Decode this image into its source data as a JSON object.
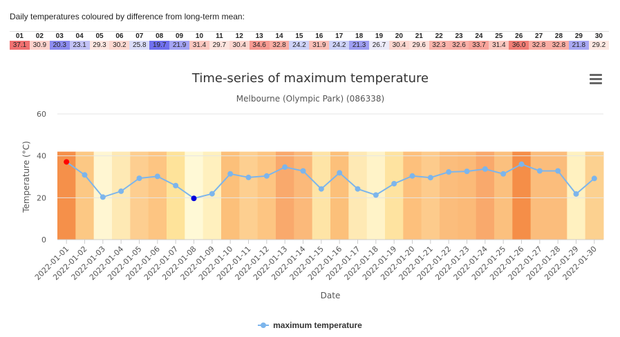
{
  "intro_text": "Daily temperatures coloured by difference from long-term mean:",
  "menu_icon": "hamburger-menu-icon",
  "colors": {
    "line": "#7cb5ec",
    "max_marker": "#ff0000",
    "min_marker": "#0000dd",
    "grid": "#e6e6e6"
  },
  "daily_table": {
    "days": [
      "01",
      "02",
      "03",
      "04",
      "05",
      "06",
      "07",
      "08",
      "09",
      "10",
      "11",
      "12",
      "13",
      "14",
      "15",
      "16",
      "17",
      "18",
      "19",
      "20",
      "21",
      "22",
      "23",
      "24",
      "25",
      "26",
      "27",
      "28",
      "29",
      "30"
    ],
    "values": [
      "37.1",
      "30.9",
      "20.3",
      "23.1",
      "29.3",
      "30.2",
      "25.8",
      "19.7",
      "21.9",
      "31.4",
      "29.7",
      "30.4",
      "34.6",
      "32.8",
      "24.2",
      "31.9",
      "24.2",
      "21.3",
      "26.7",
      "30.4",
      "29.6",
      "32.3",
      "32.6",
      "33.7",
      "31.4",
      "36.0",
      "32.8",
      "32.8",
      "21.8",
      "29.2"
    ],
    "cell_colors": [
      "#f07171",
      "#fcd2cc",
      "#8c8cf0",
      "#c2c2f6",
      "#fde6e0",
      "#fcd8d0",
      "#d9dcf8",
      "#7070ee",
      "#a4a4f4",
      "#fbc8c0",
      "#fde4de",
      "#fcd6cf",
      "#f79a92",
      "#faaea5",
      "#cdd2f8",
      "#fbbfb7",
      "#cdd2f8",
      "#9e9ef2",
      "#ebeaf8",
      "#fcd6cf",
      "#fde0da",
      "#fab4ac",
      "#fab0a8",
      "#f8a49b",
      "#fbc8c0",
      "#f17e76",
      "#faaea5",
      "#faaea5",
      "#a8a8f4",
      "#fde8e2"
    ]
  },
  "chart_data": {
    "type": "line",
    "title": "Time-series of maximum temperature",
    "subtitle": "Melbourne (Olympic Park) (086338)",
    "xlabel": "Date",
    "ylabel": "Temperature (°C)",
    "ylim": [
      0,
      60
    ],
    "yticks": [
      0,
      20,
      40,
      60
    ],
    "grid": true,
    "legend_position": "bottom-center",
    "x": [
      "2022-01-01",
      "2022-01-02",
      "2022-01-03",
      "2022-01-04",
      "2022-01-05",
      "2022-01-06",
      "2022-01-07",
      "2022-01-08",
      "2022-01-09",
      "2022-01-10",
      "2022-01-11",
      "2022-01-12",
      "2022-01-13",
      "2022-01-14",
      "2022-01-15",
      "2022-01-16",
      "2022-01-17",
      "2022-01-18",
      "2022-01-19",
      "2022-01-20",
      "2022-01-21",
      "2022-01-22",
      "2022-01-23",
      "2022-01-24",
      "2022-01-25",
      "2022-01-26",
      "2022-01-27",
      "2022-01-28",
      "2022-01-29",
      "2022-01-30"
    ],
    "series": [
      {
        "name": "maximum temperature",
        "values": [
          37.1,
          30.9,
          20.3,
          23.1,
          29.3,
          30.2,
          25.8,
          19.7,
          21.9,
          31.4,
          29.7,
          30.4,
          34.6,
          32.8,
          24.2,
          31.9,
          24.2,
          21.3,
          26.7,
          30.4,
          29.6,
          32.3,
          32.6,
          33.7,
          31.4,
          36.0,
          32.8,
          32.8,
          21.8,
          29.2
        ]
      }
    ],
    "max_index": 0,
    "min_index": 7,
    "band_top": 42,
    "band_colors": [
      "#f5904a",
      "#fcc884",
      "#fff6d2",
      "#fee9b4",
      "#fdce90",
      "#fdc582",
      "#fee39a",
      "#fff9d6",
      "#fff0be",
      "#fcc07a",
      "#fdcf90",
      "#fdc582",
      "#f9a96c",
      "#fbb97a",
      "#fee4a6",
      "#fcc07a",
      "#fee9b4",
      "#fff3c8",
      "#fee3a0",
      "#fdc07c",
      "#fdcb8c",
      "#fbbd7c",
      "#fbba78",
      "#f9a96c",
      "#fbc07e",
      "#f58e48",
      "#fbbd7c",
      "#fbbd7c",
      "#fff1c0",
      "#fcd190"
    ]
  }
}
